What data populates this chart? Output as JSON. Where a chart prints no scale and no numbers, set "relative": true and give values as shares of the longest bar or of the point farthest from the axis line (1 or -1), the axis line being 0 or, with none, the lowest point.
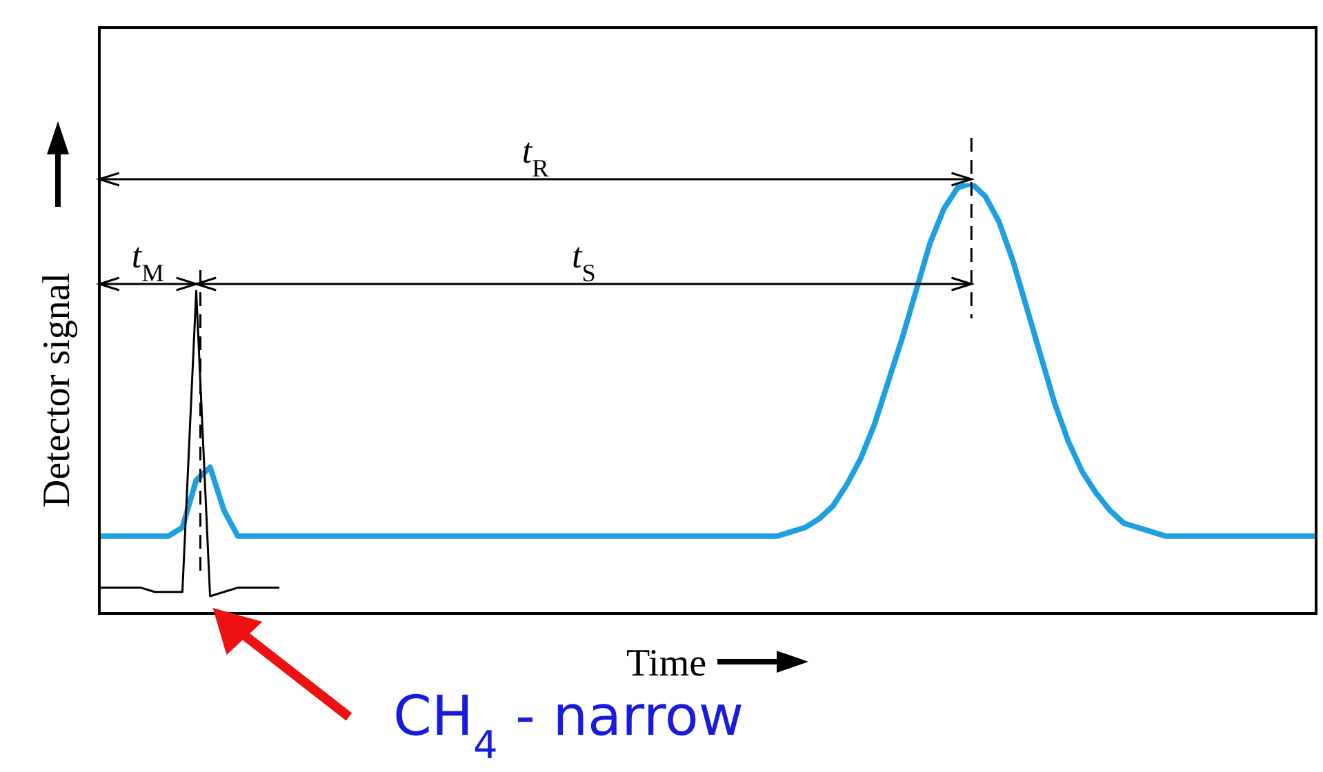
{
  "chart_data": {
    "type": "line",
    "relative": true,
    "marker": "none",
    "xlabel": "Time",
    "ylabel": "Detector signal",
    "annotations": [
      "t$_{R}$",
      "t$_{M}$",
      "t$_{S}$",
      "CH$_{4}$ - narrow"
    ],
    "categories": [
      null,
      null,
      null,
      null,
      null,
      null,
      null,
      null,
      null,
      null,
      null,
      null,
      null,
      null,
      null,
      null,
      null,
      null,
      null,
      null,
      null,
      null,
      null,
      null,
      null,
      null,
      null,
      null,
      null,
      null,
      null,
      null,
      null,
      null,
      null,
      null,
      null,
      null,
      null,
      null,
      null,
      null,
      null,
      null,
      null,
      null,
      null,
      null,
      null,
      null,
      null,
      null,
      null,
      null,
      null,
      null,
      null,
      null,
      null,
      null,
      null,
      null,
      null,
      null,
      null,
      null,
      null,
      null,
      null,
      null,
      null,
      null,
      null,
      null,
      null,
      null,
      null,
      null,
      null,
      null,
      null,
      null,
      null,
      null,
      null,
      null,
      null,
      null,
      null
    ],
    "series": [
      {
        "color": "#1ea0e0",
        "values": [
          0.18,
          0.18,
          0.18,
          0.18,
          0.18,
          0.18,
          0.2,
          0.31,
          0.34,
          0.24,
          0.18,
          0.18,
          0.18,
          0.18,
          0.18,
          0.18,
          0.18,
          0.18,
          0.18,
          0.18,
          0.18,
          0.18,
          0.18,
          0.18,
          0.18,
          0.18,
          0.18,
          0.18,
          0.18,
          0.18,
          0.18,
          0.18,
          0.18,
          0.18,
          0.18,
          0.18,
          0.18,
          0.18,
          0.18,
          0.18,
          0.18,
          0.18,
          0.18,
          0.18,
          0.18,
          0.18,
          0.18,
          0.18,
          0.18,
          0.18,
          0.19,
          0.2,
          0.22,
          0.25,
          0.3,
          0.36,
          0.44,
          0.54,
          0.64,
          0.75,
          0.86,
          0.94,
          0.99,
          1,
          0.97,
          0.91,
          0.82,
          0.71,
          0.6,
          0.49,
          0.4,
          0.33,
          0.28,
          0.24,
          0.21,
          0.2,
          0.19,
          0.18,
          0.18,
          0.18,
          0.18,
          0.18,
          0.18,
          0.18,
          0.18,
          0.18,
          0.18,
          0.18,
          0.18
        ]
      },
      {
        "color": "#000000",
        "values": [
          0.06,
          0.06,
          0.06,
          0.06,
          0.05,
          0.05,
          0.05,
          0.75,
          0.04,
          0.05,
          0.06,
          0.06,
          0.06,
          0.06,
          null,
          null,
          null,
          null,
          null,
          null,
          null,
          null,
          null,
          null,
          null,
          null,
          null,
          null,
          null,
          null,
          null,
          null,
          null,
          null,
          null,
          null,
          null,
          null,
          null,
          null,
          null,
          null,
          null,
          null,
          null,
          null,
          null,
          null,
          null,
          null,
          null,
          null,
          null,
          null,
          null,
          null,
          null,
          null,
          null,
          null,
          null,
          null,
          null,
          null,
          null,
          null,
          null,
          null,
          null,
          null,
          null,
          null,
          null,
          null,
          null,
          null,
          null,
          null,
          null,
          null,
          null,
          null,
          null,
          null,
          null,
          null,
          null,
          null,
          null
        ]
      }
    ]
  }
}
